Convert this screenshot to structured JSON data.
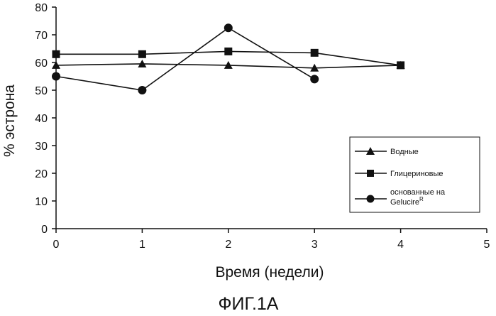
{
  "chart_data": {
    "type": "line",
    "xlabel": "Время (недели)",
    "ylabel": "% эстрона",
    "caption": "ФИГ.1А",
    "xlim": [
      0,
      5
    ],
    "ylim": [
      0,
      80
    ],
    "x_ticks": [
      0,
      1,
      2,
      3,
      4,
      5
    ],
    "y_ticks": [
      0,
      10,
      20,
      30,
      40,
      50,
      60,
      70,
      80
    ],
    "grid": false,
    "legend_position": "bottom-right",
    "series": [
      {
        "name": "Водные",
        "marker": "triangle",
        "x": [
          0,
          1,
          2,
          3,
          4
        ],
        "y": [
          59,
          59.5,
          59,
          58,
          59
        ]
      },
      {
        "name": "Глицериновые",
        "marker": "square",
        "x": [
          0,
          1,
          2,
          3,
          4
        ],
        "y": [
          63,
          63,
          64,
          63.5,
          59
        ]
      },
      {
        "name_line1": "основанные на",
        "name_line2": "Gelucire",
        "name_sup": "R",
        "marker": "circle",
        "x": [
          0,
          1,
          2,
          3
        ],
        "y": [
          55,
          50,
          72.5,
          54
        ]
      }
    ]
  }
}
